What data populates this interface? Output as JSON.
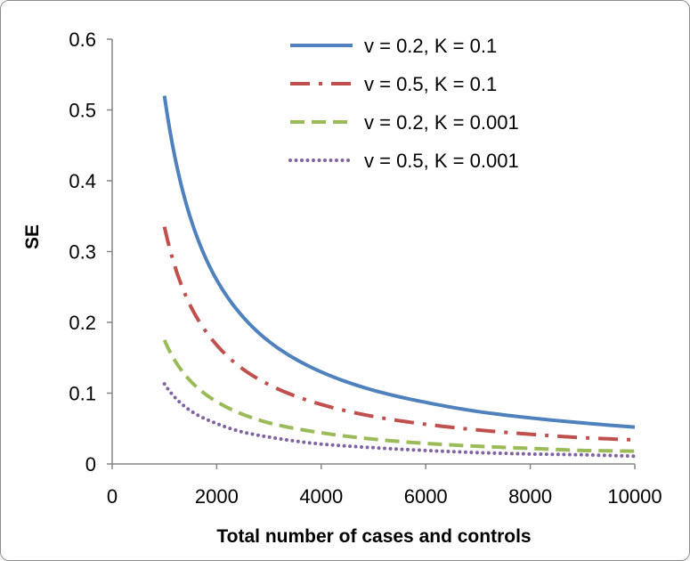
{
  "chart_data": {
    "type": "line",
    "xlabel": "Total number of cases and controls",
    "ylabel": "SE",
    "xlim": [
      0,
      10000
    ],
    "ylim": [
      0,
      0.6
    ],
    "x_ticks": [
      0,
      2000,
      4000,
      6000,
      8000,
      10000
    ],
    "x_tick_labels": [
      "0",
      "2000",
      "4000",
      "6000",
      "8000",
      "10000"
    ],
    "y_ticks": [
      0,
      0.1,
      0.2,
      0.3,
      0.4,
      0.5,
      0.6
    ],
    "y_tick_labels": [
      "0",
      "0.1",
      "0.2",
      "0.3",
      "0.4",
      "0.5",
      "0.6"
    ],
    "grid": false,
    "legend_position": "top-right",
    "x": [
      1000,
      1500,
      2000,
      2500,
      3000,
      4000,
      5000,
      6000,
      7000,
      8000,
      9000,
      10000
    ],
    "series": [
      {
        "name": "v = 0.2, K = 0.1",
        "color": "#4f81bd",
        "style": "solid",
        "values": [
          0.52,
          0.347,
          0.26,
          0.208,
          0.173,
          0.13,
          0.104,
          0.087,
          0.074,
          0.065,
          0.058,
          0.052
        ]
      },
      {
        "name": "v = 0.5, K = 0.1",
        "color": "#c0504d",
        "style": "dash-dot",
        "values": [
          0.335,
          0.223,
          0.168,
          0.134,
          0.112,
          0.084,
          0.067,
          0.056,
          0.048,
          0.042,
          0.037,
          0.034
        ]
      },
      {
        "name": "v = 0.2, K = 0.001",
        "color": "#9bbb59",
        "style": "dashed",
        "values": [
          0.175,
          0.117,
          0.088,
          0.07,
          0.058,
          0.044,
          0.035,
          0.029,
          0.025,
          0.022,
          0.019,
          0.018
        ]
      },
      {
        "name": "v = 0.5, K = 0.001",
        "color": "#8064a2",
        "style": "dotted",
        "values": [
          0.113,
          0.075,
          0.057,
          0.045,
          0.038,
          0.028,
          0.023,
          0.019,
          0.016,
          0.014,
          0.013,
          0.011
        ]
      }
    ]
  }
}
